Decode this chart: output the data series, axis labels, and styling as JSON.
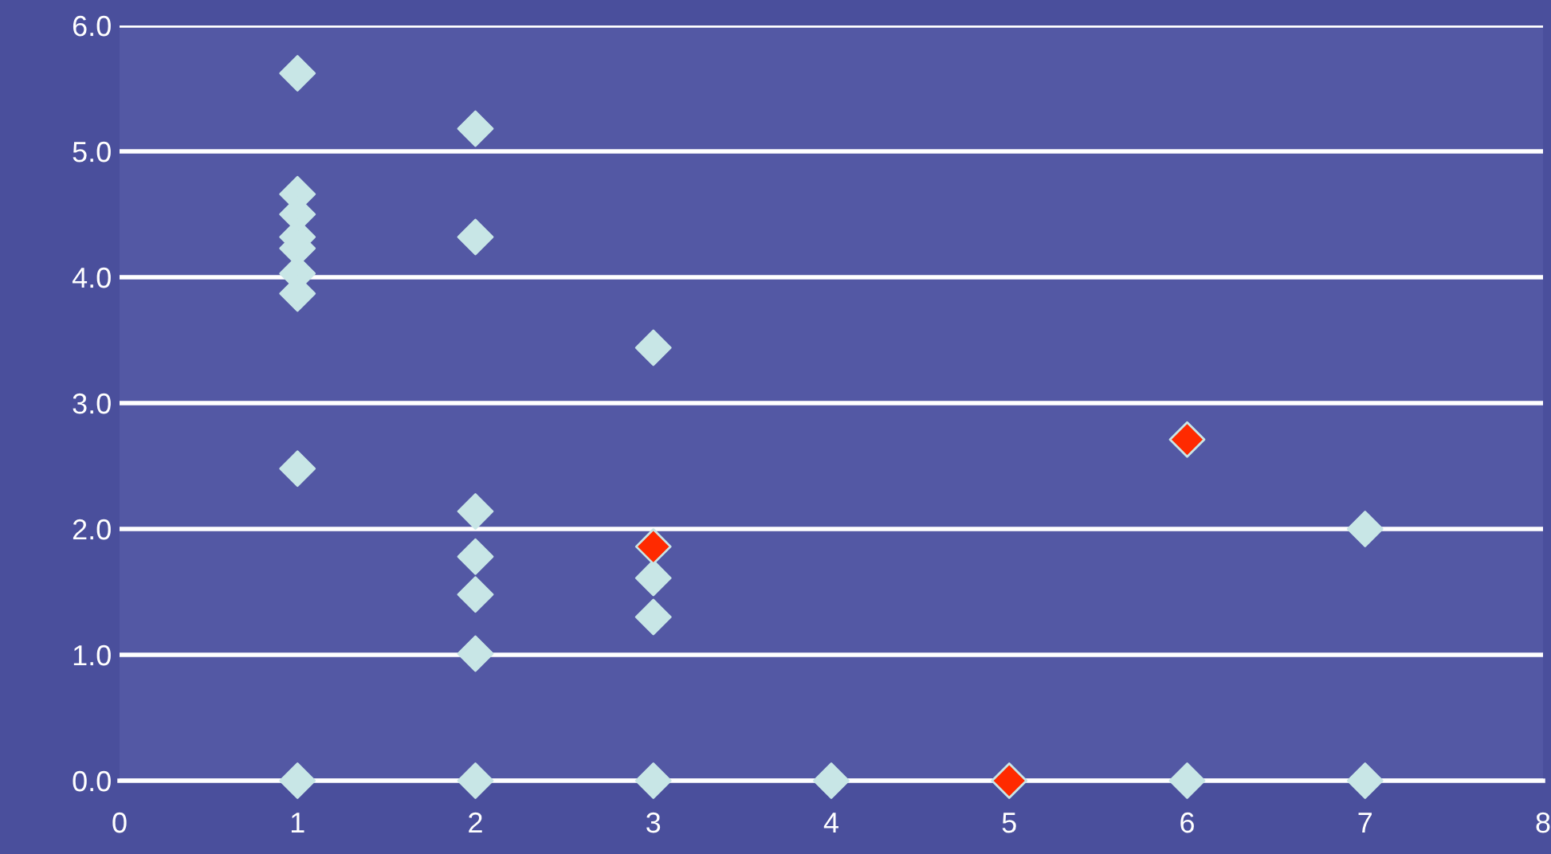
{
  "chart_data": {
    "type": "scatter",
    "marker": "diamond",
    "grid": "y",
    "xlim": [
      0,
      8
    ],
    "xticks": [
      0,
      1,
      2,
      3,
      4,
      5,
      6,
      7,
      8
    ],
    "ylim": [
      0,
      6
    ],
    "yticks": [
      {
        "value": 0,
        "label": "0.0"
      },
      {
        "value": 1,
        "label": "1.0"
      },
      {
        "value": 2,
        "label": "2.0"
      },
      {
        "value": 3,
        "label": "3.0"
      },
      {
        "value": 4,
        "label": "4.0"
      },
      {
        "value": 5,
        "label": "5.0"
      },
      {
        "value": 6,
        "label": "6.0"
      }
    ],
    "series": [
      {
        "color": "#c8e6e6",
        "x": [
          1,
          1,
          1,
          1,
          1,
          1,
          1,
          1,
          1,
          2,
          2,
          2,
          2,
          2,
          2,
          2,
          3,
          3,
          3,
          3,
          4,
          6,
          7,
          7
        ],
        "values": [
          5.62,
          4.66,
          4.5,
          4.32,
          4.23,
          4.03,
          3.87,
          2.48,
          0,
          5.18,
          4.32,
          2.14,
          1.78,
          1.48,
          1.01,
          0,
          3.44,
          1.61,
          1.3,
          0,
          0,
          0,
          2.0,
          0
        ]
      },
      {
        "color": "#ff2a00",
        "x": [
          3,
          5,
          6
        ],
        "values": [
          1.86,
          0,
          2.71
        ]
      }
    ]
  }
}
